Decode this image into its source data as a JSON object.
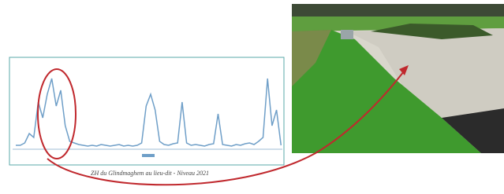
{
  "chart_data": {
    "type": "line",
    "color": "#6f9fc8",
    "caption": "ZH du Glindmaghem au lieu-dit - Niveau 2021",
    "values": [
      5,
      5,
      8,
      20,
      15,
      60,
      40,
      70,
      90,
      55,
      75,
      30,
      10,
      8,
      6,
      5,
      4,
      5,
      4,
      6,
      5,
      4,
      5,
      6,
      4,
      5,
      4,
      5,
      8,
      55,
      70,
      50,
      10,
      6,
      5,
      7,
      8,
      60,
      8,
      5,
      6,
      5,
      4,
      6,
      7,
      45,
      6,
      5,
      4,
      6,
      5,
      7,
      8,
      6,
      10,
      15,
      90,
      30,
      50,
      5
    ]
  }
}
